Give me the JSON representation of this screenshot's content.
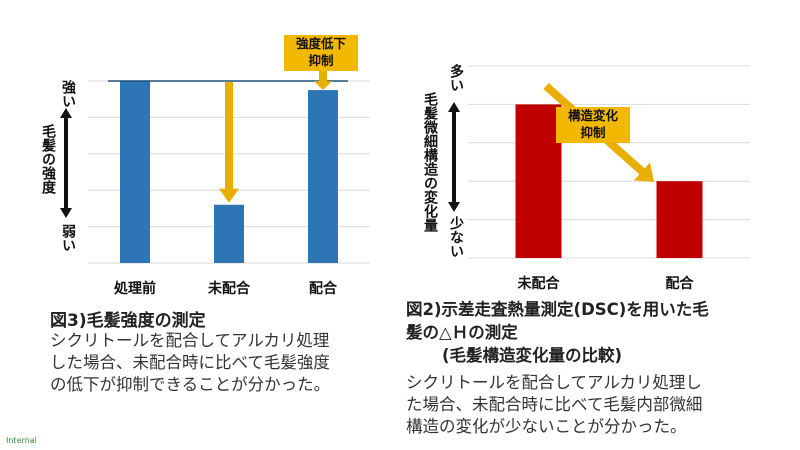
{
  "colors": {
    "blue": "#2e75b6",
    "red": "#c00000",
    "gold": "#e8ae00",
    "grid": "#d9d9d9",
    "footer_green": "#2e8b3a"
  },
  "chart_data": [
    {
      "type": "bar",
      "categories": [
        "処理前",
        "未配合",
        "配合"
      ],
      "values": [
        100,
        32,
        95
      ],
      "ylim": [
        0,
        100
      ],
      "grid": true,
      "color": "#2e75b6",
      "axis_label": "毛髪の強度",
      "top_label": "強い",
      "bottom_label": "弱い",
      "callout": "強度低下\n抑制"
    },
    {
      "type": "bar",
      "categories": [
        "未配合",
        "配合"
      ],
      "values": [
        80,
        40
      ],
      "ylim": [
        0,
        100
      ],
      "grid": true,
      "color": "#c00000",
      "axis_label": "毛髪微細構造の変化量",
      "top_label": "多い",
      "bottom_label": "少ない",
      "callout": "構造変化\n抑制"
    }
  ],
  "left": {
    "title": "図3)毛髪強度の測定",
    "desc": [
      "シクリトールを配合してアルカリ処理",
      "した場合、未配合時に比べて毛髪強度",
      "の低下が抑制できることが分かった。"
    ]
  },
  "right": {
    "title_line1": "図2)示差走査熱量測定(DSC)を用いた毛",
    "title_line2": "髪の△Ｈの測定",
    "title_line3": "(毛髪構造変化量の比較)",
    "desc": [
      "シクリトールを配合してアルカリ処理し",
      "た場合、未配合時に比べて毛髪内部微細",
      "構造の変化が少ないことが分かった。"
    ]
  },
  "footer": "Internal"
}
